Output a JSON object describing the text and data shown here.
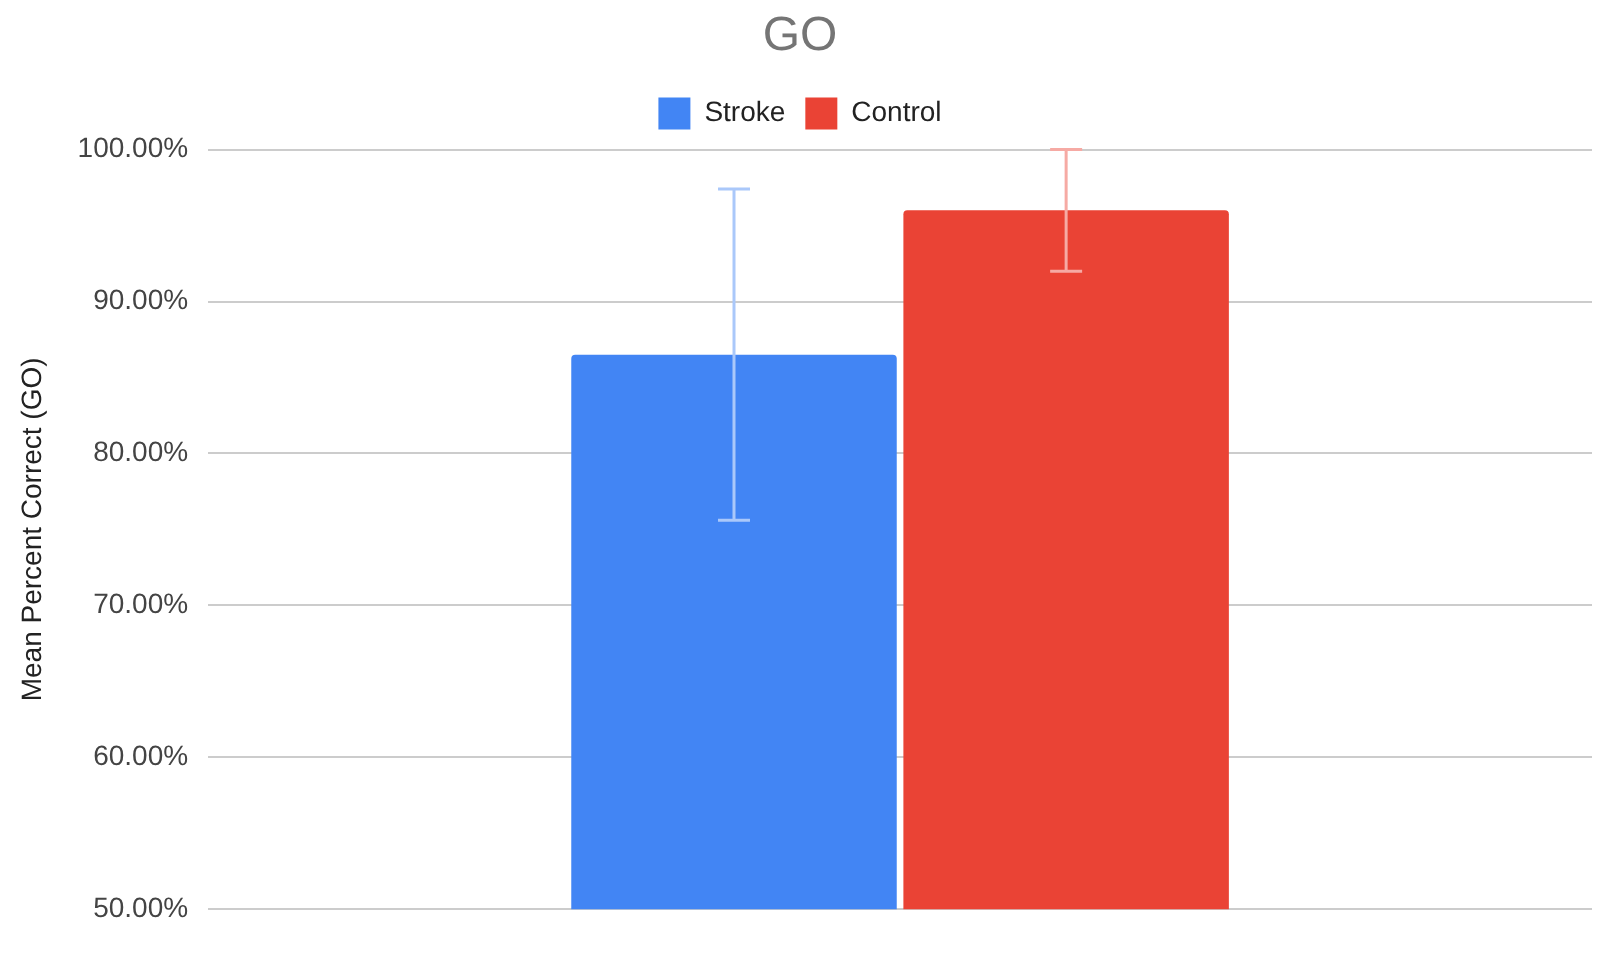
{
  "chart_data": {
    "type": "bar",
    "title": "GO",
    "ylabel": "Mean Percent Correct (GO)",
    "categories": [
      null
    ],
    "series": [
      {
        "name": "Stroke",
        "color": "#4285f4",
        "values": [
          86.5
        ],
        "errors": [
          10.9
        ]
      },
      {
        "name": "Control",
        "color": "#ea4335",
        "values": [
          96.0
        ],
        "errors": [
          4.0
        ]
      }
    ],
    "ylim": [
      50,
      100
    ],
    "yticks": [
      {
        "value": 50,
        "label": "50.00%"
      },
      {
        "value": 60,
        "label": "60.00%"
      },
      {
        "value": 70,
        "label": "70.00%"
      },
      {
        "value": 80,
        "label": "80.00%"
      },
      {
        "value": 90,
        "label": "90.00%"
      },
      {
        "value": 100,
        "label": "100.00%"
      }
    ],
    "grid": "y",
    "legend": "top"
  }
}
